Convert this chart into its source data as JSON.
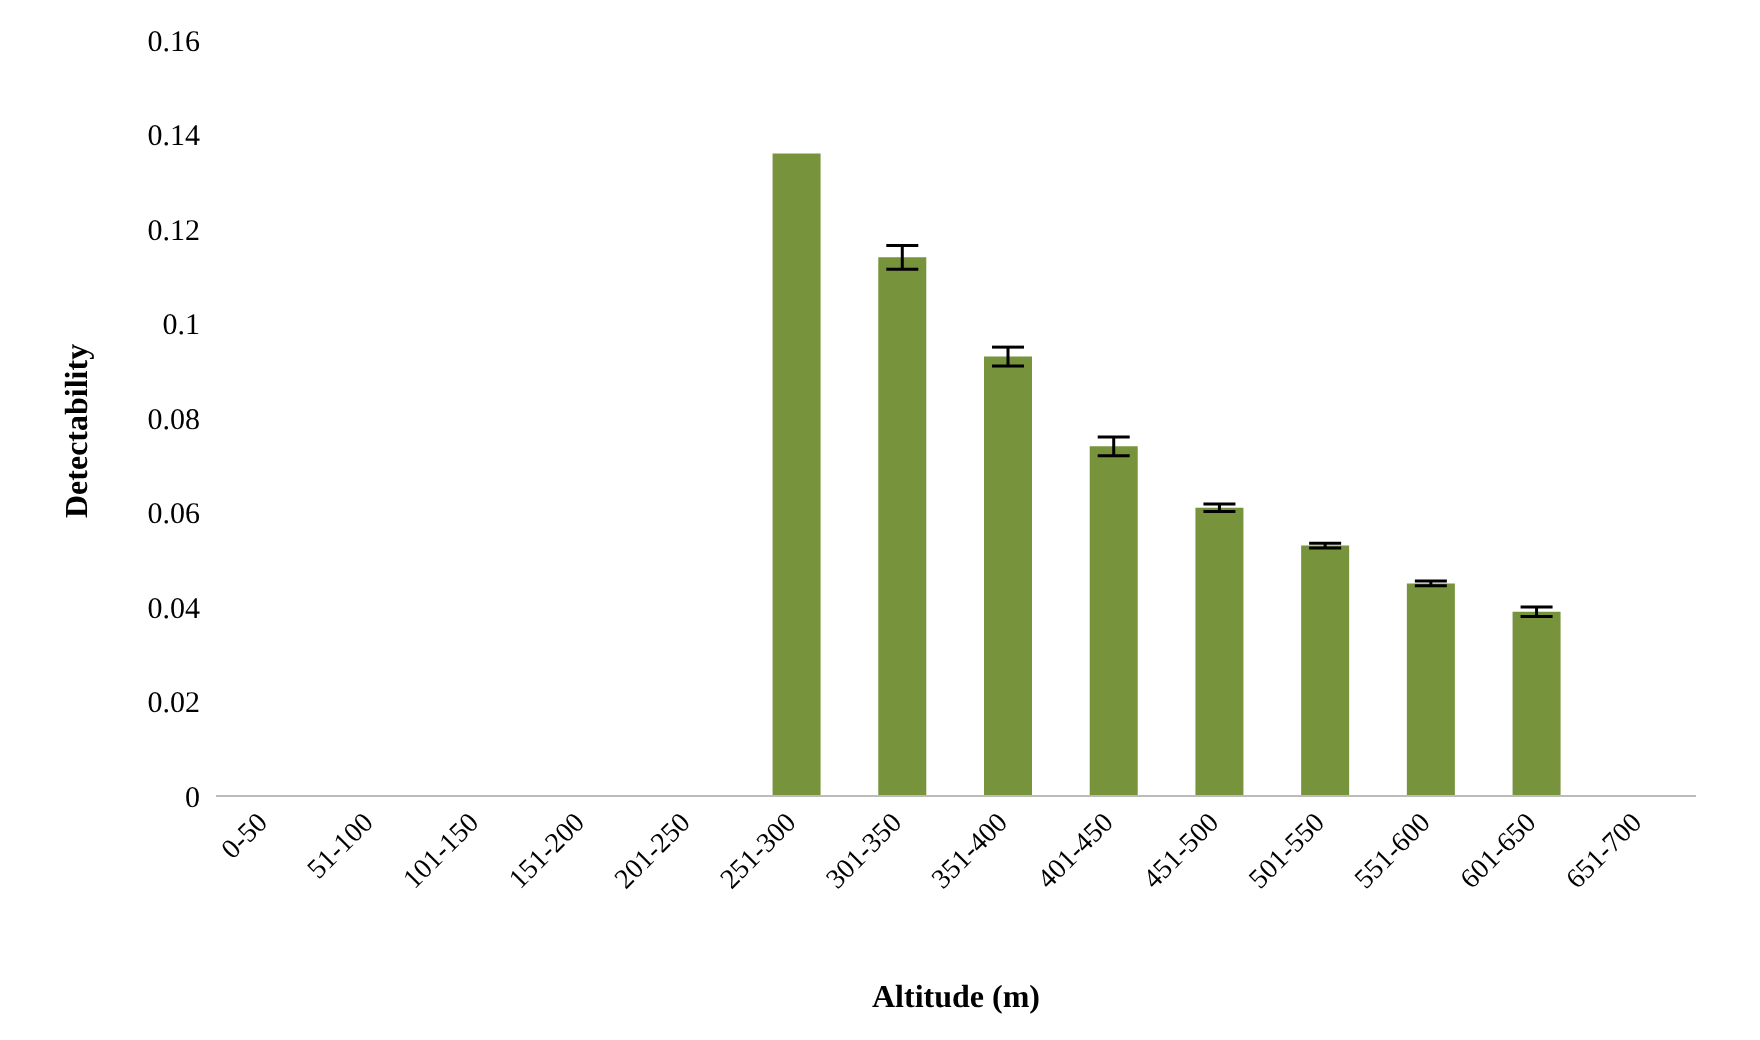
{
  "chart_data": {
    "type": "bar",
    "xlabel": "Altitude (m)",
    "ylabel": "Detectability",
    "categories": [
      "0-50",
      "51-100",
      "101-150",
      "151-200",
      "201-250",
      "251-300",
      "301-350",
      "351-400",
      "401-450",
      "451-500",
      "501-550",
      "551-600",
      "601-650",
      "651-700"
    ],
    "values": [
      null,
      null,
      null,
      null,
      null,
      0.136,
      0.114,
      0.093,
      0.074,
      0.061,
      0.053,
      0.045,
      0.039,
      null
    ],
    "errors": [
      null,
      null,
      null,
      null,
      null,
      null,
      0.0025,
      0.002,
      0.002,
      0.0008,
      0.0005,
      0.0005,
      0.001,
      null
    ],
    "color": "#77933c",
    "ylim": [
      0,
      0.16
    ],
    "yticks": [
      0,
      0.02,
      0.04,
      0.06,
      0.08,
      0.1,
      0.12,
      0.14,
      0.16
    ],
    "grid": false,
    "legend": false
  }
}
